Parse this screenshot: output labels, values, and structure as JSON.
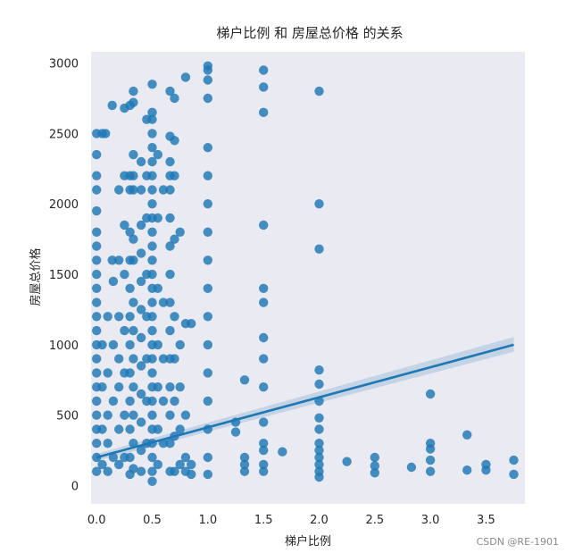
{
  "watermark": "CSDN @RE-1901",
  "colors": {
    "background": "#eaeaf2",
    "grid": "#ffffff",
    "point": "#1f77b4",
    "line": "#1f77b4",
    "band": "#a6c1da",
    "text": "#262626"
  },
  "chart_data": {
    "type": "scatter",
    "title": "梯户比例 和 房屋总价格 的关系",
    "xlabel": "梯户比例",
    "ylabel": "房屋总价格",
    "xlim": [
      -0.05,
      3.85
    ],
    "ylim": [
      -130,
      3080
    ],
    "x_ticks": [
      0.0,
      0.5,
      1.0,
      1.5,
      2.0,
      2.5,
      3.0,
      3.5
    ],
    "x_tick_labels": [
      "0.0",
      "0.5",
      "1.0",
      "1.5",
      "2.0",
      "2.5",
      "3.0",
      "3.5"
    ],
    "y_ticks": [
      0,
      500,
      1000,
      1500,
      2000,
      2500,
      3000
    ],
    "y_tick_labels": [
      "0",
      "500",
      "1000",
      "1500",
      "2000",
      "2500",
      "3000"
    ],
    "grid": false,
    "regression": {
      "x": [
        0.0,
        3.75
      ],
      "y": [
        200,
        1000
      ],
      "ci_lower": [
        175,
        950
      ],
      "ci_upper": [
        225,
        1055
      ]
    },
    "points": [
      [
        0.0,
        2500
      ],
      [
        0.0,
        2350
      ],
      [
        0.0,
        2200
      ],
      [
        0.0,
        2100
      ],
      [
        0.0,
        1950
      ],
      [
        0.0,
        1800
      ],
      [
        0.0,
        1700
      ],
      [
        0.0,
        1600
      ],
      [
        0.0,
        1500
      ],
      [
        0.0,
        1400
      ],
      [
        0.0,
        1300
      ],
      [
        0.0,
        1200
      ],
      [
        0.0,
        1100
      ],
      [
        0.0,
        1000
      ],
      [
        0.0,
        900
      ],
      [
        0.0,
        800
      ],
      [
        0.0,
        700
      ],
      [
        0.0,
        600
      ],
      [
        0.0,
        500
      ],
      [
        0.0,
        400
      ],
      [
        0.0,
        300
      ],
      [
        0.0,
        200
      ],
      [
        0.0,
        100
      ],
      [
        0.05,
        2500
      ],
      [
        0.05,
        1000
      ],
      [
        0.05,
        700
      ],
      [
        0.05,
        400
      ],
      [
        0.05,
        150
      ],
      [
        0.08,
        2500
      ],
      [
        0.1,
        1200
      ],
      [
        0.1,
        800
      ],
      [
        0.1,
        500
      ],
      [
        0.1,
        300
      ],
      [
        0.1,
        100
      ],
      [
        0.14,
        2700
      ],
      [
        0.14,
        1600
      ],
      [
        0.15,
        1450
      ],
      [
        0.15,
        1000
      ],
      [
        0.15,
        600
      ],
      [
        0.15,
        200
      ],
      [
        0.2,
        2100
      ],
      [
        0.2,
        1600
      ],
      [
        0.2,
        1200
      ],
      [
        0.2,
        900
      ],
      [
        0.2,
        700
      ],
      [
        0.2,
        400
      ],
      [
        0.2,
        150
      ],
      [
        0.25,
        2680
      ],
      [
        0.25,
        2200
      ],
      [
        0.25,
        1850
      ],
      [
        0.25,
        1500
      ],
      [
        0.25,
        1100
      ],
      [
        0.25,
        800
      ],
      [
        0.25,
        500
      ],
      [
        0.25,
        200
      ],
      [
        0.3,
        2700
      ],
      [
        0.3,
        2200
      ],
      [
        0.3,
        2100
      ],
      [
        0.3,
        1800
      ],
      [
        0.3,
        1600
      ],
      [
        0.3,
        1400
      ],
      [
        0.3,
        1200
      ],
      [
        0.3,
        1000
      ],
      [
        0.3,
        800
      ],
      [
        0.3,
        600
      ],
      [
        0.3,
        400
      ],
      [
        0.3,
        200
      ],
      [
        0.3,
        80
      ],
      [
        0.33,
        2800
      ],
      [
        0.33,
        2720
      ],
      [
        0.33,
        2350
      ],
      [
        0.33,
        2200
      ],
      [
        0.33,
        2100
      ],
      [
        0.33,
        1750
      ],
      [
        0.33,
        1600
      ],
      [
        0.33,
        1300
      ],
      [
        0.33,
        1100
      ],
      [
        0.33,
        900
      ],
      [
        0.33,
        700
      ],
      [
        0.33,
        500
      ],
      [
        0.33,
        300
      ],
      [
        0.33,
        120
      ],
      [
        0.4,
        2300
      ],
      [
        0.4,
        2100
      ],
      [
        0.4,
        1850
      ],
      [
        0.4,
        1650
      ],
      [
        0.4,
        1450
      ],
      [
        0.4,
        1250
      ],
      [
        0.4,
        1050
      ],
      [
        0.4,
        850
      ],
      [
        0.4,
        650
      ],
      [
        0.4,
        450
      ],
      [
        0.4,
        250
      ],
      [
        0.4,
        100
      ],
      [
        0.45,
        2600
      ],
      [
        0.45,
        2200
      ],
      [
        0.45,
        1900
      ],
      [
        0.45,
        1500
      ],
      [
        0.45,
        1200
      ],
      [
        0.45,
        900
      ],
      [
        0.45,
        600
      ],
      [
        0.45,
        300
      ],
      [
        0.5,
        2850
      ],
      [
        0.5,
        2650
      ],
      [
        0.5,
        2600
      ],
      [
        0.5,
        2500
      ],
      [
        0.5,
        2400
      ],
      [
        0.5,
        2300
      ],
      [
        0.5,
        2200
      ],
      [
        0.5,
        2100
      ],
      [
        0.5,
        2000
      ],
      [
        0.5,
        1900
      ],
      [
        0.5,
        1800
      ],
      [
        0.5,
        1700
      ],
      [
        0.5,
        1600
      ],
      [
        0.5,
        1500
      ],
      [
        0.5,
        1400
      ],
      [
        0.5,
        1300
      ],
      [
        0.5,
        1200
      ],
      [
        0.5,
        1100
      ],
      [
        0.5,
        1000
      ],
      [
        0.5,
        900
      ],
      [
        0.5,
        800
      ],
      [
        0.5,
        700
      ],
      [
        0.5,
        600
      ],
      [
        0.5,
        500
      ],
      [
        0.5,
        400
      ],
      [
        0.5,
        300
      ],
      [
        0.5,
        200
      ],
      [
        0.5,
        100
      ],
      [
        0.5,
        30
      ],
      [
        0.55,
        2350
      ],
      [
        0.55,
        1900
      ],
      [
        0.55,
        1400
      ],
      [
        0.55,
        1000
      ],
      [
        0.55,
        700
      ],
      [
        0.55,
        400
      ],
      [
        0.55,
        150
      ],
      [
        0.6,
        2100
      ],
      [
        0.6,
        1300
      ],
      [
        0.6,
        900
      ],
      [
        0.6,
        600
      ],
      [
        0.6,
        300
      ],
      [
        0.66,
        2800
      ],
      [
        0.66,
        2480
      ],
      [
        0.66,
        2300
      ],
      [
        0.66,
        2200
      ],
      [
        0.66,
        2100
      ],
      [
        0.66,
        1900
      ],
      [
        0.66,
        1700
      ],
      [
        0.66,
        1500
      ],
      [
        0.66,
        1300
      ],
      [
        0.66,
        1100
      ],
      [
        0.66,
        900
      ],
      [
        0.66,
        700
      ],
      [
        0.66,
        500
      ],
      [
        0.66,
        300
      ],
      [
        0.66,
        100
      ],
      [
        0.7,
        2750
      ],
      [
        0.7,
        2450
      ],
      [
        0.7,
        2200
      ],
      [
        0.7,
        1750
      ],
      [
        0.7,
        1200
      ],
      [
        0.7,
        900
      ],
      [
        0.7,
        600
      ],
      [
        0.7,
        350
      ],
      [
        0.7,
        100
      ],
      [
        0.75,
        1800
      ],
      [
        0.75,
        1000
      ],
      [
        0.75,
        700
      ],
      [
        0.75,
        400
      ],
      [
        0.75,
        150
      ],
      [
        0.8,
        2900
      ],
      [
        0.8,
        1150
      ],
      [
        0.8,
        500
      ],
      [
        0.8,
        200
      ],
      [
        0.8,
        100
      ],
      [
        0.85,
        1150
      ],
      [
        0.85,
        150
      ],
      [
        0.85,
        80
      ],
      [
        1.0,
        2980
      ],
      [
        1.0,
        2950
      ],
      [
        1.0,
        2880
      ],
      [
        1.0,
        2750
      ],
      [
        1.0,
        2400
      ],
      [
        1.0,
        2200
      ],
      [
        1.0,
        2000
      ],
      [
        1.0,
        1800
      ],
      [
        1.0,
        1600
      ],
      [
        1.0,
        1400
      ],
      [
        1.0,
        1200
      ],
      [
        1.0,
        1000
      ],
      [
        1.0,
        800
      ],
      [
        1.0,
        600
      ],
      [
        1.0,
        400
      ],
      [
        1.0,
        200
      ],
      [
        1.0,
        80
      ],
      [
        1.25,
        450
      ],
      [
        1.25,
        380
      ],
      [
        1.33,
        750
      ],
      [
        1.33,
        200
      ],
      [
        1.33,
        150
      ],
      [
        1.33,
        100
      ],
      [
        1.5,
        2950
      ],
      [
        1.5,
        2830
      ],
      [
        1.5,
        2650
      ],
      [
        1.5,
        1850
      ],
      [
        1.5,
        1400
      ],
      [
        1.5,
        1300
      ],
      [
        1.5,
        1050
      ],
      [
        1.5,
        900
      ],
      [
        1.5,
        700
      ],
      [
        1.5,
        450
      ],
      [
        1.5,
        300
      ],
      [
        1.5,
        250
      ],
      [
        1.5,
        150
      ],
      [
        1.5,
        100
      ],
      [
        1.67,
        240
      ],
      [
        2.0,
        2800
      ],
      [
        2.0,
        2000
      ],
      [
        2.0,
        1680
      ],
      [
        2.0,
        820
      ],
      [
        2.0,
        720
      ],
      [
        2.0,
        600
      ],
      [
        2.0,
        480
      ],
      [
        2.0,
        400
      ],
      [
        2.0,
        300
      ],
      [
        2.0,
        250
      ],
      [
        2.0,
        200
      ],
      [
        2.0,
        150
      ],
      [
        2.0,
        100
      ],
      [
        2.0,
        60
      ],
      [
        2.25,
        170
      ],
      [
        2.5,
        200
      ],
      [
        2.5,
        140
      ],
      [
        2.5,
        90
      ],
      [
        2.83,
        130
      ],
      [
        3.0,
        650
      ],
      [
        3.0,
        300
      ],
      [
        3.0,
        260
      ],
      [
        3.0,
        180
      ],
      [
        3.0,
        100
      ],
      [
        3.33,
        360
      ],
      [
        3.33,
        110
      ],
      [
        3.5,
        150
      ],
      [
        3.5,
        110
      ],
      [
        3.75,
        180
      ],
      [
        3.75,
        80
      ]
    ]
  }
}
